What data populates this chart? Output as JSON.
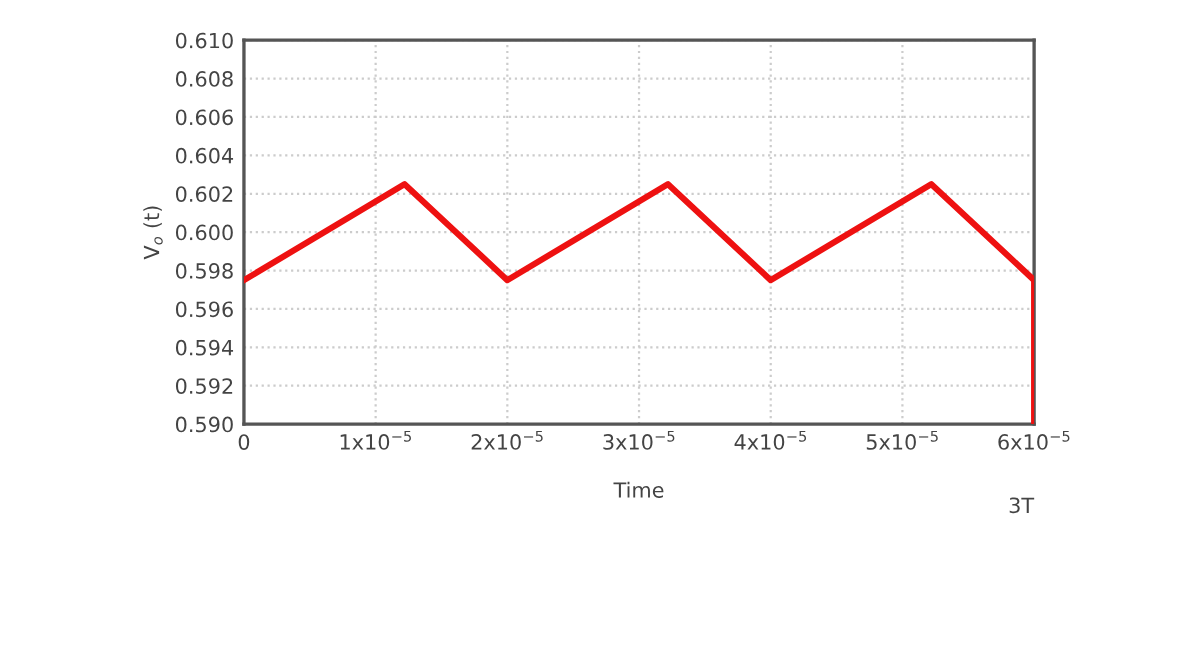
{
  "chart_data": {
    "type": "line",
    "xlabel": "Time",
    "ylabel": "V$_{o}$ (t)",
    "series": [
      {
        "color": "#ee1111",
        "x": [
          0,
          1.22e-05,
          2e-05,
          3.22e-05,
          4e-05,
          5.22e-05,
          6e-05,
          6e-05
        ],
        "values": [
          0.5975,
          0.6025,
          0.5975,
          0.6025,
          0.5975,
          0.6025,
          0.5975,
          0.59
        ]
      }
    ],
    "xlim": [
      0,
      6e-05
    ],
    "xticks": [
      0,
      {
        "value": 1e-05,
        "label": "1x10$^{−5}$"
      },
      {
        "value": 2e-05,
        "label": "2x10$^{−5}$"
      },
      {
        "value": 3e-05,
        "label": "3x10$^{−5}$"
      },
      {
        "value": 4e-05,
        "label": "4x10$^{−5}$"
      },
      {
        "value": 5e-05,
        "label": "5x10$^{−5}$"
      },
      {
        "value": 6e-05,
        "label": "6x10$^{−5}$"
      }
    ],
    "ylim": [
      0.59,
      0.61
    ],
    "yticks": [
      {
        "value": 0.59,
        "label": "0.590"
      },
      {
        "value": 0.592,
        "label": "0.592"
      },
      {
        "value": 0.594,
        "label": "0.594"
      },
      {
        "value": 0.596,
        "label": "0.596"
      },
      {
        "value": 0.598,
        "label": "0.598"
      },
      {
        "value": 0.6,
        "label": "0.600"
      },
      {
        "value": 0.602,
        "label": "0.602"
      },
      {
        "value": 0.604,
        "label": "0.604"
      },
      {
        "value": 0.606,
        "label": "0.606"
      },
      {
        "value": 0.608,
        "label": "0.608"
      },
      {
        "value": 0.61,
        "label": "0.610"
      }
    ],
    "grid": true,
    "marker": "none",
    "line_style": "solid",
    "annotations": [
      "3T"
    ]
  }
}
